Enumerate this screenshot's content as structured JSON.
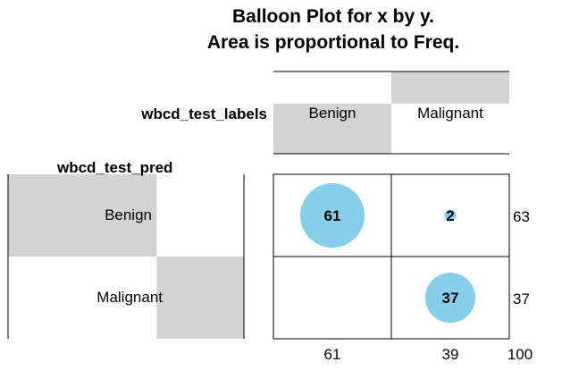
{
  "chart_data": {
    "type": "balloon",
    "title_line1": "Balloon Plot for x by y.",
    "title_line2": "Area is proportional to Freq.",
    "x_var": "wbcd_test_labels",
    "y_var": "wbcd_test_pred",
    "columns": [
      "Benign",
      "Malignant"
    ],
    "rows": [
      "Benign",
      "Malignant"
    ],
    "cells": [
      {
        "row": "Benign",
        "col": "Benign",
        "freq": 61,
        "label": "61"
      },
      {
        "row": "Benign",
        "col": "Malignant",
        "freq": 2,
        "label": "2"
      },
      {
        "row": "Malignant",
        "col": "Benign",
        "freq": 0,
        "label": ""
      },
      {
        "row": "Malignant",
        "col": "Malignant",
        "freq": 37,
        "label": "37"
      }
    ],
    "row_totals": [
      "63",
      "37"
    ],
    "col_totals": [
      "61",
      "39"
    ],
    "grand_total": "100",
    "row_proportions": [
      0.63,
      0.37
    ],
    "col_proportions": [
      0.61,
      0.39
    ],
    "colors": {
      "balloon": "#87ceeb",
      "margin_bar": "#d3d3d3",
      "line": "#000000"
    }
  }
}
